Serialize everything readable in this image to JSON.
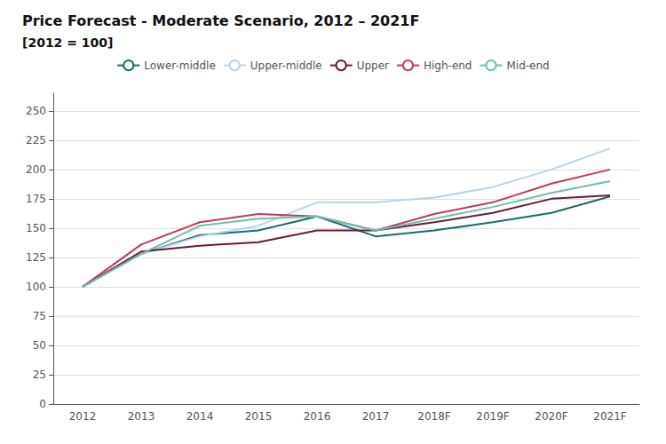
{
  "chart_data": {
    "type": "line",
    "title": "Price Forecast - Moderate Scenario, 2012 – 2021F",
    "subtitle": "[2012 = 100]",
    "categories": [
      "2012",
      "2013",
      "2014",
      "2015",
      "2016",
      "2017",
      "2018F",
      "2019F",
      "2020F",
      "2021F"
    ],
    "series": [
      {
        "name": "Lower-middle",
        "color": "#1a6b6b",
        "values": [
          100,
          128,
          144,
          148,
          160,
          143,
          148,
          155,
          163,
          177
        ]
      },
      {
        "name": "Upper-middle",
        "color": "#b8d4e8",
        "values": [
          100,
          128,
          143,
          152,
          172,
          172,
          176,
          185,
          200,
          218
        ]
      },
      {
        "name": "Upper",
        "color": "#6b1a38",
        "values": [
          100,
          130,
          135,
          138,
          148,
          148,
          155,
          163,
          175,
          178
        ]
      },
      {
        "name": "High-end",
        "color": "#c0395a",
        "values": [
          100,
          136,
          155,
          162,
          160,
          148,
          162,
          172,
          188,
          200
        ]
      },
      {
        "name": "Mid-end",
        "color": "#6dbfb0",
        "values": [
          100,
          128,
          152,
          158,
          160,
          148,
          158,
          168,
          180,
          190
        ]
      }
    ],
    "ylim": [
      0,
      265
    ],
    "yticks": [
      0,
      25,
      50,
      75,
      100,
      125,
      150,
      175,
      200,
      225,
      250
    ],
    "grid": true,
    "legend": "top"
  }
}
